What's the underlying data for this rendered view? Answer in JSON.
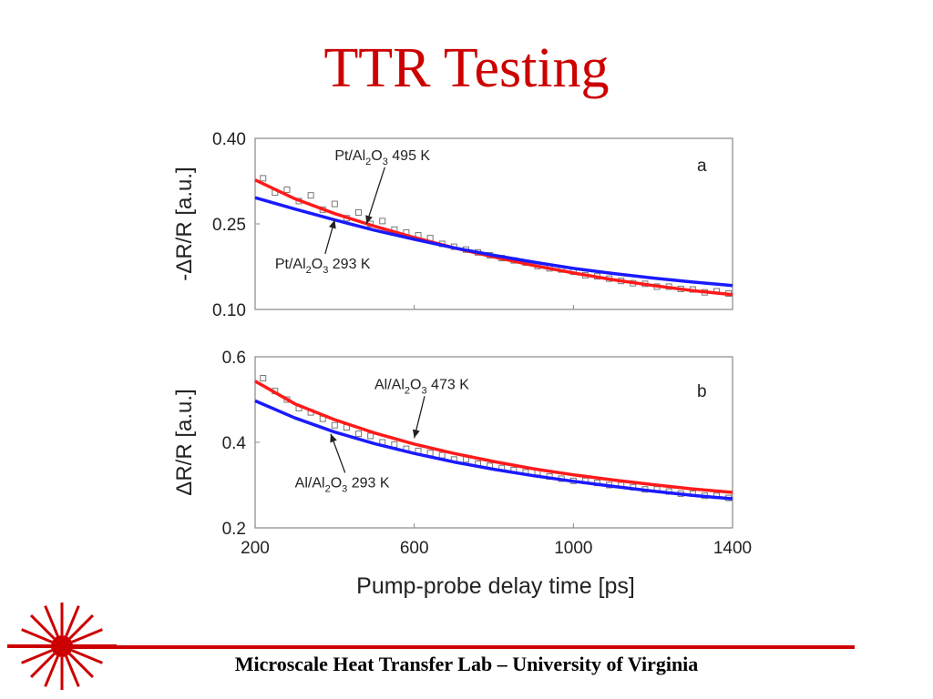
{
  "slide": {
    "title": "TTR Testing",
    "footer": "Microscale Heat Transfer Lab – University of Virginia",
    "accent_color": "#cc0000",
    "logo_icon": "laser-burst-icon"
  },
  "chart_data": [
    {
      "type": "line",
      "panel_label": "a",
      "ylabel": "-ΔR/R [a.u.]",
      "xlabel": "",
      "xlim": [
        200,
        1400
      ],
      "ylim": [
        0.1,
        0.4
      ],
      "yticks": [
        "0.40",
        "0.25",
        "0.10"
      ],
      "series": [
        {
          "name": "Pt/Al2O3 495 K",
          "label_main": "Pt/Al",
          "label_sub1": "2",
          "label_mid": "O",
          "label_sub2": "3",
          "label_tail": " 495 K",
          "color": "#ff1a1a",
          "x": [
            200,
            300,
            400,
            500,
            600,
            700,
            800,
            900,
            1000,
            1100,
            1200,
            1300,
            1400
          ],
          "y": [
            0.327,
            0.294,
            0.268,
            0.246,
            0.226,
            0.208,
            0.192,
            0.177,
            0.164,
            0.152,
            0.142,
            0.133,
            0.126
          ]
        },
        {
          "name": "Pt/Al2O3 293 K",
          "label_main": "Pt/Al",
          "label_sub1": "2",
          "label_mid": "O",
          "label_sub2": "3",
          "label_tail": " 293 K",
          "color": "#1a1aff",
          "x": [
            200,
            300,
            400,
            500,
            600,
            700,
            800,
            900,
            1000,
            1100,
            1200,
            1300,
            1400
          ],
          "y": [
            0.296,
            0.276,
            0.257,
            0.239,
            0.223,
            0.208,
            0.195,
            0.183,
            0.172,
            0.163,
            0.155,
            0.148,
            0.142
          ]
        }
      ],
      "measured_points": {
        "x": [
          220,
          250,
          280,
          310,
          340,
          370,
          400,
          430,
          460,
          490,
          520,
          550,
          580,
          610,
          640,
          670,
          700,
          730,
          760,
          790,
          820,
          850,
          880,
          910,
          940,
          970,
          1000,
          1030,
          1060,
          1090,
          1120,
          1150,
          1180,
          1210,
          1240,
          1270,
          1300,
          1330,
          1360,
          1390
        ],
        "y": [
          0.33,
          0.305,
          0.31,
          0.29,
          0.3,
          0.275,
          0.285,
          0.26,
          0.27,
          0.25,
          0.255,
          0.24,
          0.235,
          0.23,
          0.225,
          0.215,
          0.21,
          0.205,
          0.2,
          0.195,
          0.19,
          0.186,
          0.182,
          0.176,
          0.172,
          0.17,
          0.166,
          0.16,
          0.158,
          0.154,
          0.15,
          0.146,
          0.145,
          0.14,
          0.14,
          0.136,
          0.135,
          0.13,
          0.132,
          0.128
        ]
      },
      "annotations": [
        {
          "series": 0,
          "text_x": 400,
          "text_y": 0.362,
          "arrow_to_x": 480,
          "arrow_to_y": 0.25
        },
        {
          "series": 1,
          "text_x": 250,
          "text_y": 0.172,
          "arrow_to_x": 400,
          "arrow_to_y": 0.257
        }
      ]
    },
    {
      "type": "line",
      "panel_label": "b",
      "ylabel": "ΔR/R [a.u.]",
      "xlabel": "Pump-probe delay time [ps]",
      "xlim": [
        200,
        1400
      ],
      "ylim": [
        0.2,
        0.6
      ],
      "xticks": [
        200,
        600,
        1000,
        1400
      ],
      "yticks": [
        "0.6",
        "0.4",
        "0.2"
      ],
      "series": [
        {
          "name": "Al/Al2O3 473 K",
          "label_main": "Al/Al",
          "label_sub1": "2",
          "label_mid": "O",
          "label_sub2": "3",
          "label_tail": " 473 K",
          "color": "#ff1a1a",
          "x": [
            200,
            300,
            400,
            500,
            600,
            700,
            800,
            900,
            1000,
            1100,
            1200,
            1300,
            1400
          ],
          "y": [
            0.543,
            0.49,
            0.453,
            0.422,
            0.396,
            0.374,
            0.355,
            0.338,
            0.324,
            0.312,
            0.301,
            0.291,
            0.283
          ]
        },
        {
          "name": "Al/Al2O3 293 K",
          "label_main": "Al/Al",
          "label_sub1": "2",
          "label_mid": "O",
          "label_sub2": "3",
          "label_tail": " 293 K",
          "color": "#1a1aff",
          "x": [
            200,
            300,
            400,
            500,
            600,
            700,
            800,
            900,
            1000,
            1100,
            1200,
            1300,
            1400
          ],
          "y": [
            0.497,
            0.457,
            0.424,
            0.397,
            0.374,
            0.354,
            0.337,
            0.322,
            0.309,
            0.297,
            0.286,
            0.276,
            0.268
          ]
        }
      ],
      "measured_points": {
        "x": [
          220,
          250,
          280,
          310,
          340,
          370,
          400,
          430,
          460,
          490,
          520,
          550,
          580,
          610,
          640,
          670,
          700,
          730,
          760,
          790,
          820,
          850,
          880,
          910,
          940,
          970,
          1000,
          1030,
          1060,
          1090,
          1120,
          1150,
          1180,
          1210,
          1240,
          1270,
          1300,
          1330,
          1360,
          1390
        ],
        "y": [
          0.55,
          0.52,
          0.5,
          0.48,
          0.47,
          0.455,
          0.44,
          0.435,
          0.42,
          0.415,
          0.4,
          0.395,
          0.385,
          0.38,
          0.375,
          0.37,
          0.36,
          0.36,
          0.35,
          0.345,
          0.34,
          0.335,
          0.33,
          0.33,
          0.32,
          0.315,
          0.31,
          0.31,
          0.305,
          0.3,
          0.3,
          0.295,
          0.29,
          0.29,
          0.285,
          0.28,
          0.28,
          0.275,
          0.275,
          0.27
        ]
      },
      "annotations": [
        {
          "series": 0,
          "text_x": 500,
          "text_y": 0.525,
          "arrow_to_x": 600,
          "arrow_to_y": 0.41
        },
        {
          "series": 1,
          "text_x": 300,
          "text_y": 0.295,
          "arrow_to_x": 390,
          "arrow_to_y": 0.42
        }
      ]
    }
  ]
}
